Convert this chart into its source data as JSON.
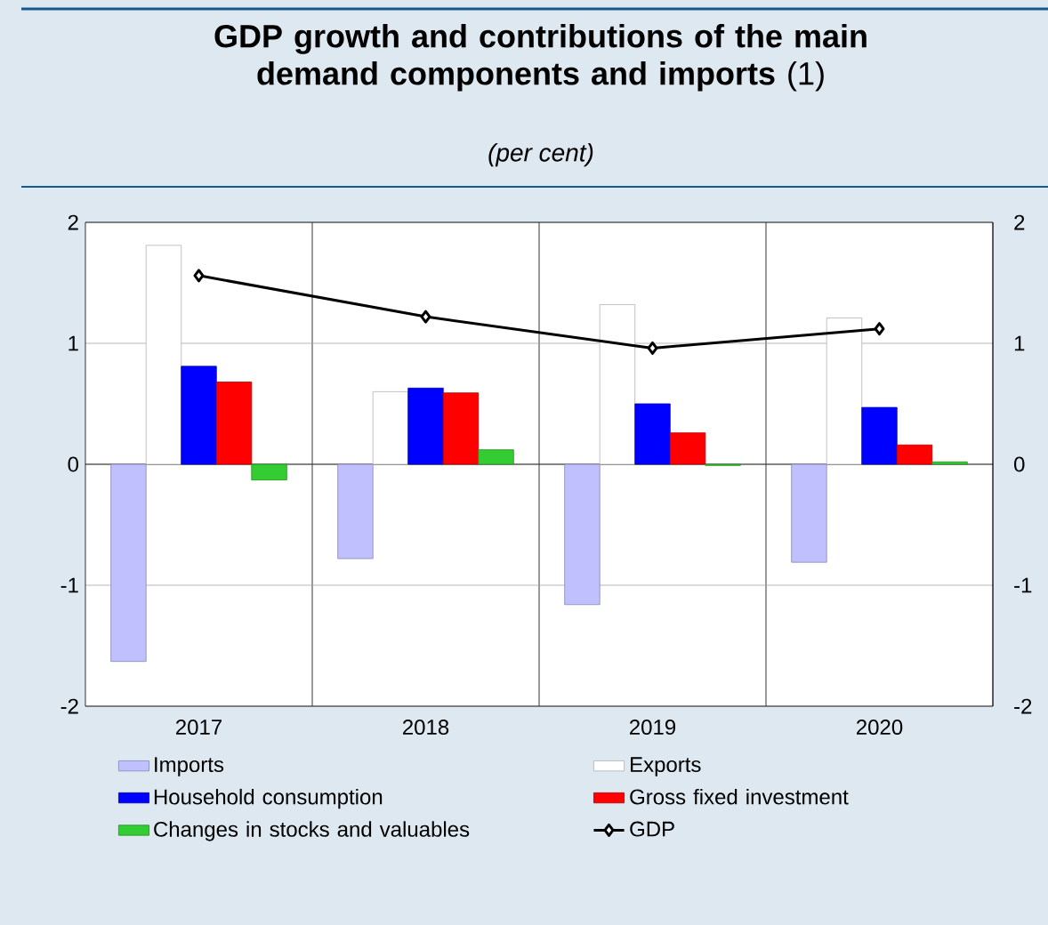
{
  "chart_data": {
    "type": "bar",
    "title": "**GDP growth and contributions of the main demand components and imports** (1)",
    "subtitle": "(per cent)",
    "categories": [
      "2017",
      "2018",
      "2019",
      "2020"
    ],
    "series": [
      {
        "name": "Imports",
        "color": "#c0c0ff",
        "values": [
          -1.63,
          -0.78,
          -1.16,
          -0.81
        ]
      },
      {
        "name": "Exports",
        "color": "#ffffff",
        "values": [
          1.81,
          0.6,
          1.32,
          1.21
        ]
      },
      {
        "name": "Household consumption",
        "color": "#0000ff",
        "values": [
          0.81,
          0.63,
          0.5,
          0.47
        ]
      },
      {
        "name": "Gross fixed investment",
        "color": "#ff0000",
        "values": [
          0.68,
          0.59,
          0.26,
          0.16
        ]
      },
      {
        "name": "Changes in stocks and valuables",
        "color": "#33cc33",
        "values": [
          -0.13,
          0.12,
          -0.01,
          0.02
        ]
      },
      {
        "name": "GDP",
        "type": "line",
        "color": "#000000",
        "marker": "diamond",
        "values": [
          1.56,
          1.22,
          0.96,
          1.12
        ]
      }
    ],
    "ylim": [
      -2,
      2
    ],
    "yticks": [
      -2,
      -1,
      0,
      1,
      2
    ],
    "y2lim": [
      -2,
      2
    ],
    "y2ticks": [
      -2,
      -1,
      0,
      1,
      2
    ],
    "grid": "y",
    "legend": "bottom"
  }
}
